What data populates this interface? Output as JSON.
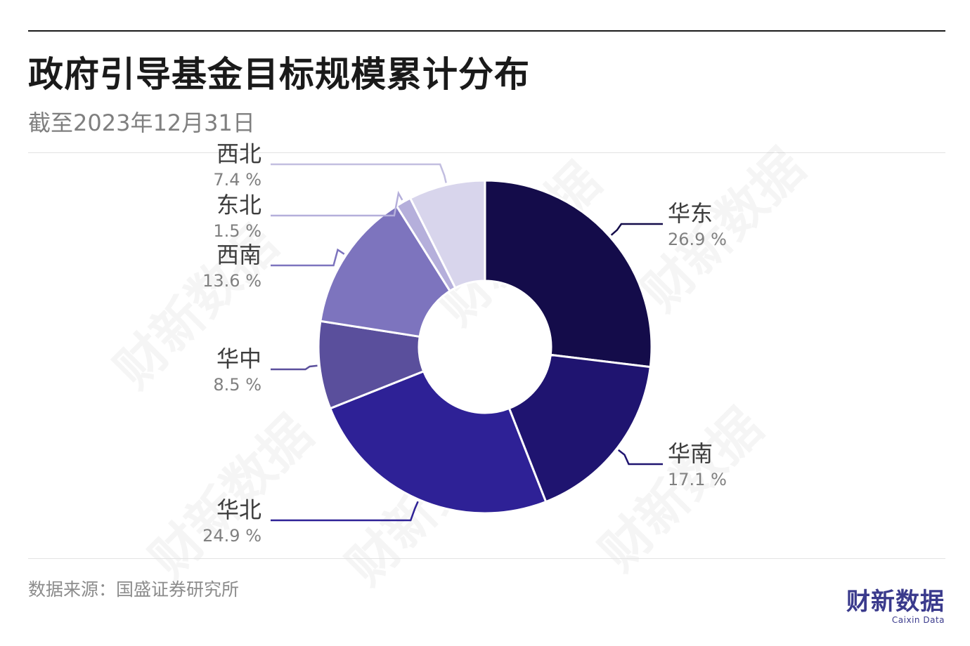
{
  "title": "政府引导基金目标规模累计分布",
  "subtitle": "截至2023年12月31日",
  "source": "数据来源：国盛证券研究所",
  "brand": {
    "name_cn": "财新数据",
    "name_en": "Caixin Data",
    "color": "#3a3a8c"
  },
  "watermark": "财新数据",
  "chart_data": {
    "type": "pie",
    "donut": true,
    "unit": "%",
    "slices": [
      {
        "label": "华东",
        "value": 26.9,
        "value_label": "26.9 %",
        "color": "#140c4a",
        "label_side": "right"
      },
      {
        "label": "华南",
        "value": 17.1,
        "value_label": "17.1 %",
        "color": "#1f1470",
        "label_side": "right"
      },
      {
        "label": "华北",
        "value": 24.9,
        "value_label": "24.9 %",
        "color": "#2e2196",
        "label_side": "left"
      },
      {
        "label": "华中",
        "value": 8.5,
        "value_label": "8.5 %",
        "color": "#5a4f9c",
        "label_side": "left"
      },
      {
        "label": "西南",
        "value": 13.6,
        "value_label": "13.6 %",
        "color": "#7d74be",
        "label_side": "left"
      },
      {
        "label": "东北",
        "value": 1.5,
        "value_label": "1.5 %",
        "color": "#b5afdb",
        "label_side": "left"
      },
      {
        "label": "西北",
        "value": 7.4,
        "value_label": "7.4 %",
        "color": "#d8d5ec",
        "label_side": "left"
      }
    ]
  }
}
